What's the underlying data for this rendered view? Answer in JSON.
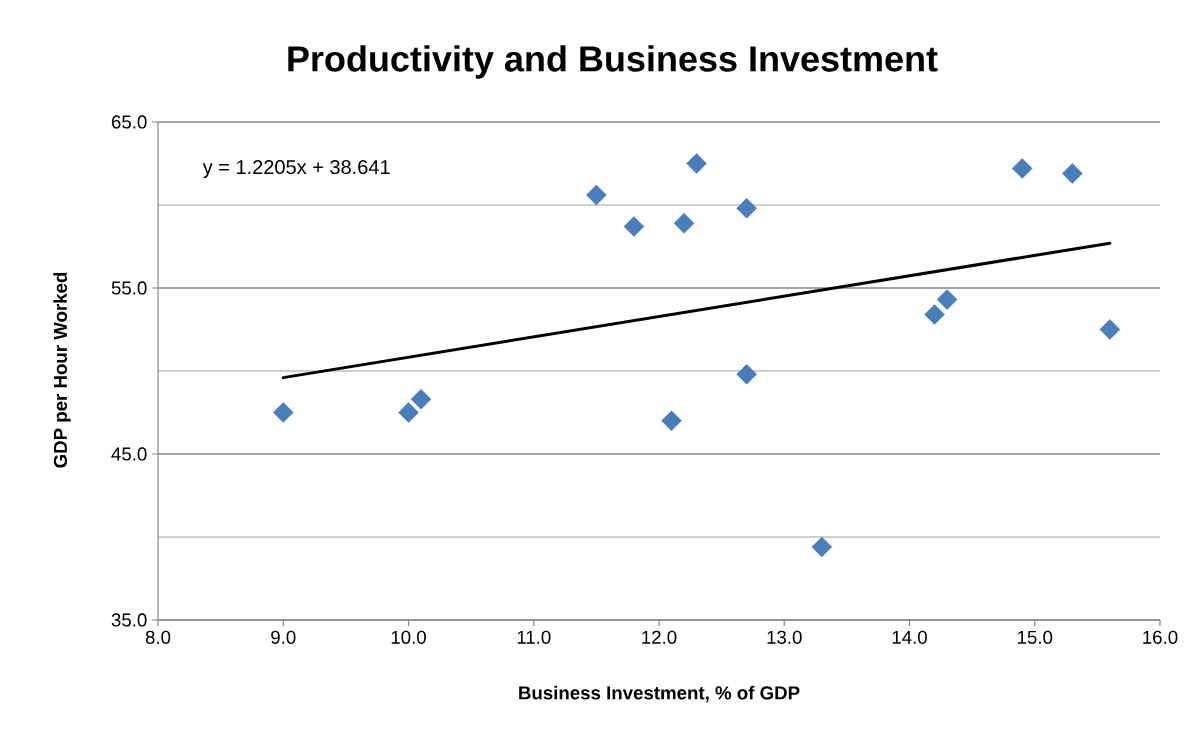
{
  "chart_data": {
    "type": "scatter",
    "title": "Productivity and Business Investment",
    "xlabel": "Business Investment, % of GDP",
    "ylabel": "GDP per Hour Worked",
    "annotations": [
      "y = 1.2205x + 38.641"
    ],
    "xlim": [
      8,
      16
    ],
    "ylim": [
      35,
      65
    ],
    "xticks": [
      {
        "value": 8,
        "label": "8.0"
      },
      {
        "value": 9,
        "label": "9.0"
      },
      {
        "value": 10,
        "label": "10.0"
      },
      {
        "value": 11,
        "label": "11.0"
      },
      {
        "value": 12,
        "label": "12.0"
      },
      {
        "value": 13,
        "label": "13.0"
      },
      {
        "value": 14,
        "label": "14.0"
      },
      {
        "value": 15,
        "label": "15.0"
      },
      {
        "value": 16,
        "label": "16.0"
      }
    ],
    "yticks": [
      {
        "value": 35,
        "label": "35.0"
      },
      {
        "value": 40,
        "label": null
      },
      {
        "value": 45,
        "label": "45.0"
      },
      {
        "value": 50,
        "label": null
      },
      {
        "value": 55,
        "label": "55.0"
      },
      {
        "value": 60,
        "label": null
      },
      {
        "value": 65,
        "label": "65.0"
      }
    ],
    "grid": "y",
    "series": [
      {
        "color": "#4a7ebb",
        "marker": "diamond",
        "x": [
          9.0,
          10.0,
          10.1,
          11.5,
          11.8,
          12.1,
          12.2,
          12.3,
          12.7,
          12.7,
          13.3,
          14.2,
          14.3,
          14.9,
          15.3,
          15.6
        ],
        "values": [
          47.5,
          47.5,
          48.3,
          60.6,
          58.7,
          47.0,
          58.9,
          62.5,
          59.8,
          49.8,
          39.4,
          53.4,
          54.3,
          62.2,
          61.9,
          52.5
        ]
      },
      {
        "type": "line",
        "color": "#000000",
        "marker": "none",
        "line_style": "solid",
        "x": [
          9.0,
          15.6
        ],
        "values": [
          49.6,
          57.7
        ]
      }
    ]
  }
}
